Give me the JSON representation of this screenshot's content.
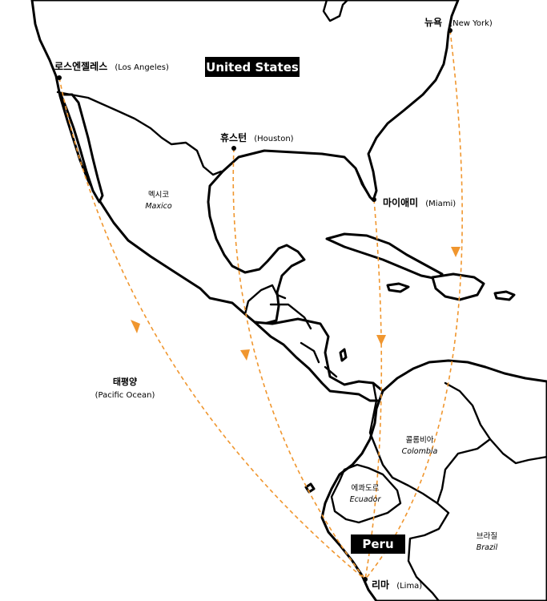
{
  "badges": {
    "united_states": "United States",
    "peru": "Peru"
  },
  "cities": {
    "los_angeles": {
      "ko": "로스엔젤레스",
      "en": "(Los Angeles)"
    },
    "houston": {
      "ko": "휴스턴",
      "en": "(Houston)"
    },
    "miami": {
      "ko": "마이애미",
      "en": "(Miami)"
    },
    "new_york": {
      "ko": "뉴욕",
      "en": "(New York)"
    },
    "lima": {
      "ko": "리마",
      "en": "(Lima)"
    }
  },
  "countries": {
    "mexico": {
      "ko": "멕시코",
      "en": "Maxico"
    },
    "colombia": {
      "ko": "콜롬비아",
      "en": "Colombia"
    },
    "ecuador": {
      "ko": "에콰도르",
      "en": "Ecuador"
    },
    "brazil": {
      "ko": "브라질",
      "en": "Brazil"
    }
  },
  "ocean": {
    "ko": "태평양",
    "en": "(Pacific Ocean)"
  },
  "colors": {
    "route": "#f0962e",
    "outline": "#000000",
    "badge": "#000000"
  },
  "routes": [
    {
      "from": "Los Angeles",
      "to": "Lima"
    },
    {
      "from": "Houston",
      "to": "Lima"
    },
    {
      "from": "Miami",
      "to": "Lima"
    },
    {
      "from": "New York",
      "to": "Lima"
    }
  ]
}
